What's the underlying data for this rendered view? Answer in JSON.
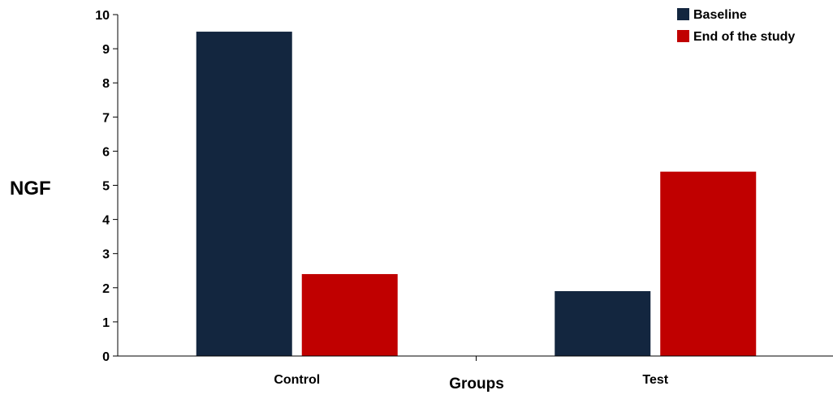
{
  "chart_data": {
    "type": "bar",
    "title": "",
    "xlabel": "Groups",
    "ylabel": "NGF",
    "categories": [
      "Control",
      "Test"
    ],
    "series": [
      {
        "name": "Baseline",
        "values": [
          9.5,
          1.9
        ],
        "color": "#13263f"
      },
      {
        "name": "End of the study",
        "values": [
          2.4,
          5.4
        ],
        "color": "#c00000"
      }
    ],
    "ylim": [
      0,
      10
    ],
    "yticks": [
      "0",
      "1",
      "2",
      "3",
      "4",
      "5",
      "6",
      "7",
      "8",
      "9",
      "10"
    ],
    "grid": false,
    "legend": "top-right"
  }
}
